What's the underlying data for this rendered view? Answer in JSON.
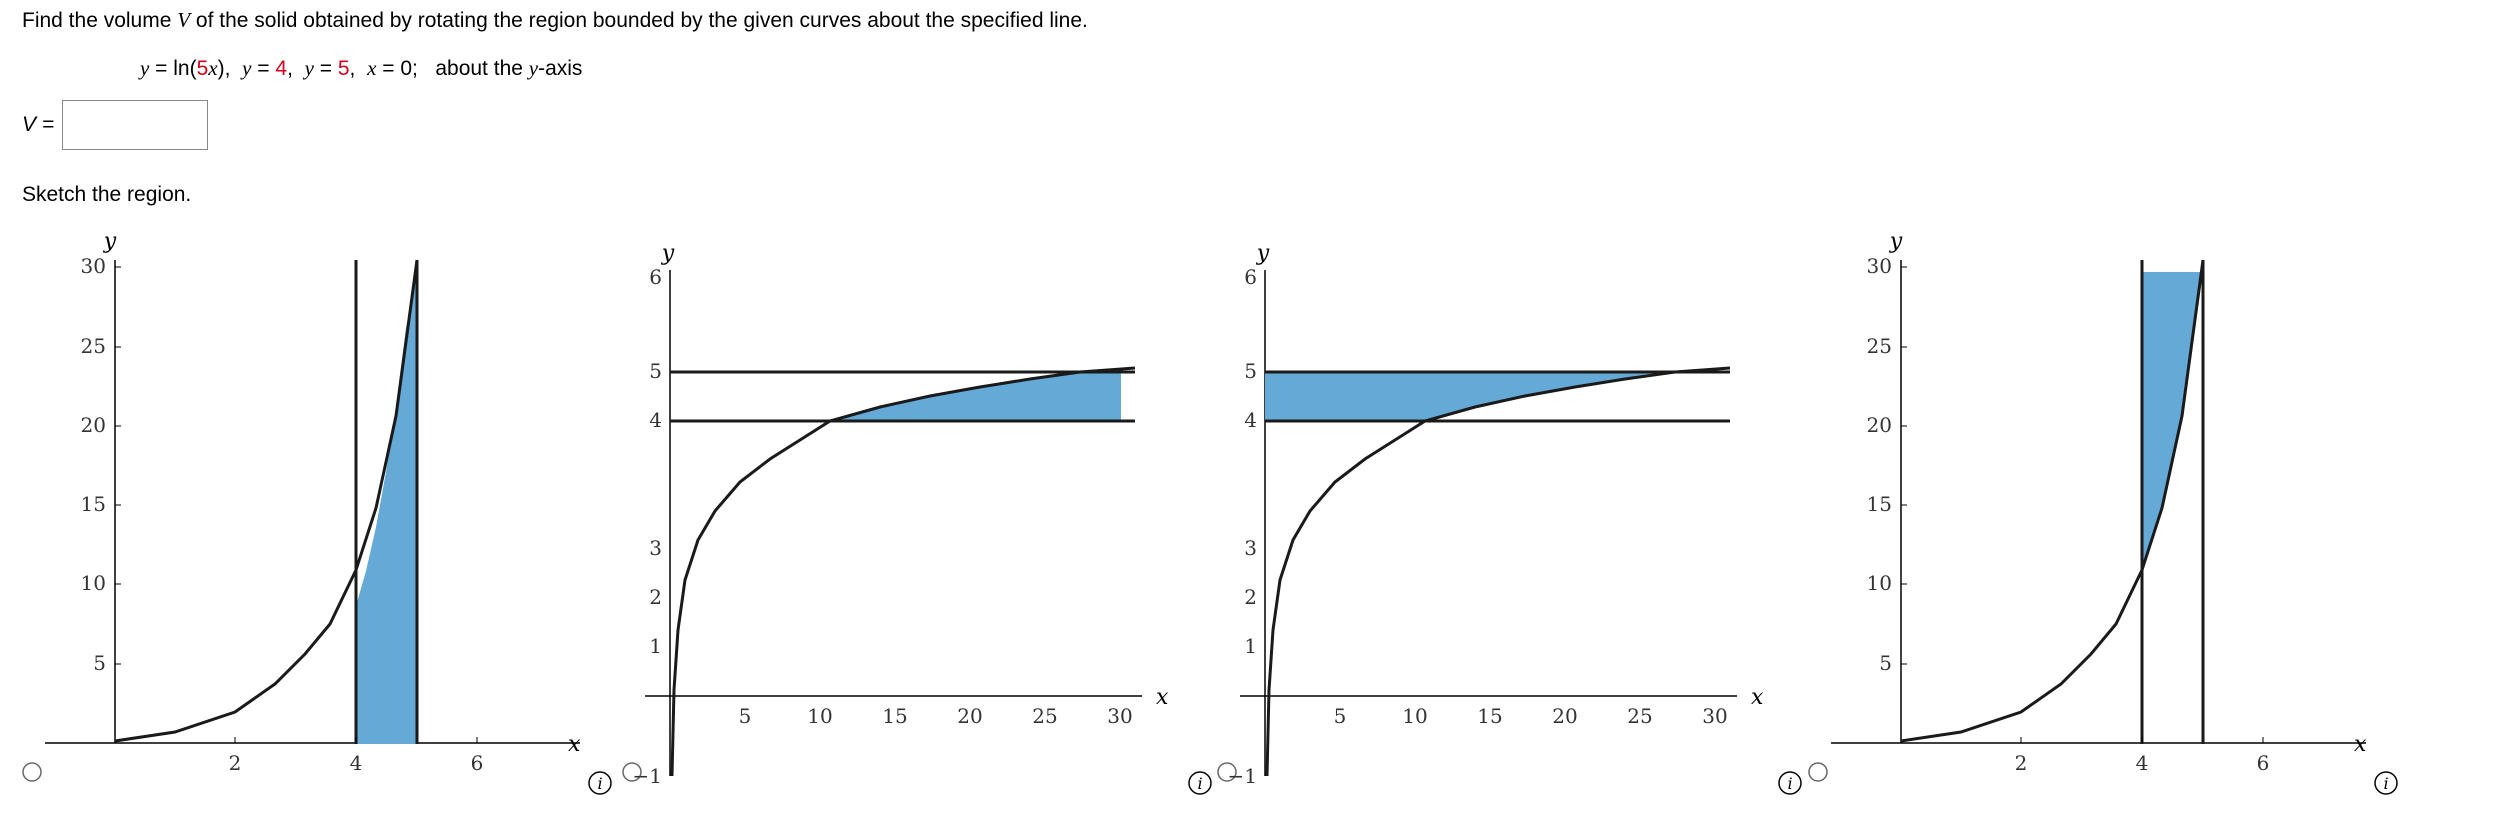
{
  "question": {
    "prompt_pre": "Find the volume ",
    "var_v": "V",
    "prompt_post": " of the solid obtained by rotating the region bounded by the given curves about the specified line."
  },
  "curves": {
    "y1": "y",
    "eq1a": " = ln(",
    "c1": "5",
    "x1": "x",
    "eq1b": "),  ",
    "y2": "y",
    "eq2": " = ",
    "c2": "4",
    "comma2": ",  ",
    "y3": "y",
    "eq3": " = ",
    "c3": "5",
    "comma3": ",  ",
    "x4": "x",
    "eq4": " = 0;   ",
    "about": "about the ",
    "axis": "y",
    "axis_suffix": "-axis"
  },
  "answer": {
    "label": "V =",
    "value": ""
  },
  "sketch_label": "Sketch the region.",
  "colors": {
    "fill": "#65a9d6",
    "red": "#d0021b",
    "curve": "#1a1a1a"
  },
  "graphs": [
    {
      "xlabel": "x",
      "ylabel": "y",
      "x_ticks": [
        "2",
        "4",
        "6"
      ],
      "y_ticks": [
        "5",
        "10",
        "15",
        "20",
        "25",
        "30"
      ],
      "selected": false
    },
    {
      "xlabel": "x",
      "ylabel": "y",
      "x_ticks": [
        "5",
        "10",
        "15",
        "20",
        "25",
        "30"
      ],
      "y_ticks": [
        "−1",
        "1",
        "2",
        "3",
        "4",
        "5",
        "6"
      ],
      "selected": false
    },
    {
      "xlabel": "x",
      "ylabel": "y",
      "x_ticks": [
        "5",
        "10",
        "15",
        "20",
        "25",
        "30"
      ],
      "y_ticks": [
        "−1",
        "1",
        "2",
        "3",
        "4",
        "5",
        "6"
      ],
      "selected": false
    },
    {
      "xlabel": "x",
      "ylabel": "y",
      "x_ticks": [
        "2",
        "4",
        "6"
      ],
      "y_ticks": [
        "5",
        "10",
        "15",
        "20",
        "25",
        "30"
      ],
      "selected": false
    }
  ],
  "info_icon_glyph": "i"
}
